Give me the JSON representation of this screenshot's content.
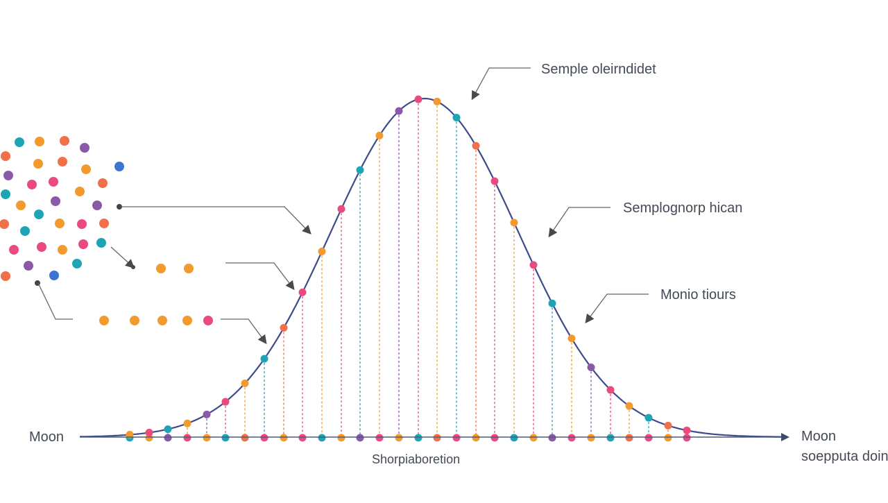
{
  "annotations": {
    "top": "Semple oleirndidet",
    "middle": "Semplognorp hican",
    "lower": "Monio tiours"
  },
  "axis": {
    "left_label": "Moon",
    "right_label_line1": "Moon",
    "right_label_line2": "soepputa doin",
    "bottom_label": "Shorpiaboretion"
  },
  "colors": {
    "curve": "#3d4a8c",
    "arrow": "#555555",
    "teal": "#1ea5b5",
    "orange": "#f29a2e",
    "pink": "#ea4a7e",
    "purple": "#8a5aa8",
    "blue": "#3c74d4",
    "coral": "#f0704a"
  }
}
